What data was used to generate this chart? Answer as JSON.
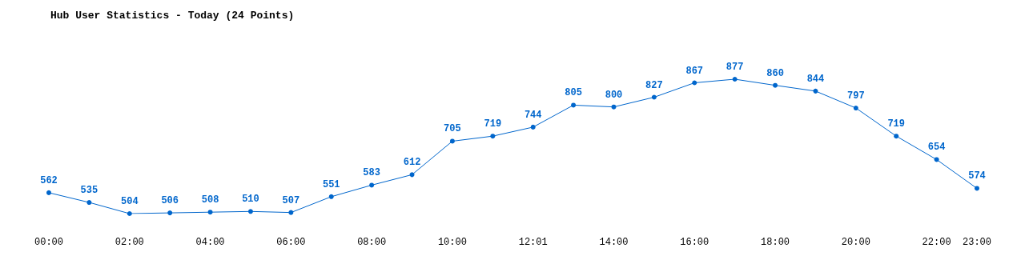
{
  "chart_data": {
    "type": "line",
    "title": "Hub User Statistics - Today (24 Points)",
    "categories": [
      "00:00",
      null,
      "02:00",
      null,
      "04:00",
      null,
      "06:00",
      null,
      "08:00",
      null,
      "10:00",
      null,
      "12:01",
      null,
      "14:00",
      null,
      "16:00",
      null,
      "18:00",
      null,
      "20:00",
      null,
      "22:00",
      "23:00"
    ],
    "series": [
      {
        "color": "#0066cc",
        "values": [
          562,
          535,
          504,
          506,
          508,
          510,
          507,
          551,
          583,
          612,
          705,
          719,
          744,
          805,
          800,
          827,
          867,
          877,
          860,
          844,
          797,
          719,
          654,
          574
        ]
      }
    ],
    "data_labels": true,
    "marker": "circle",
    "line_style": "solid"
  }
}
